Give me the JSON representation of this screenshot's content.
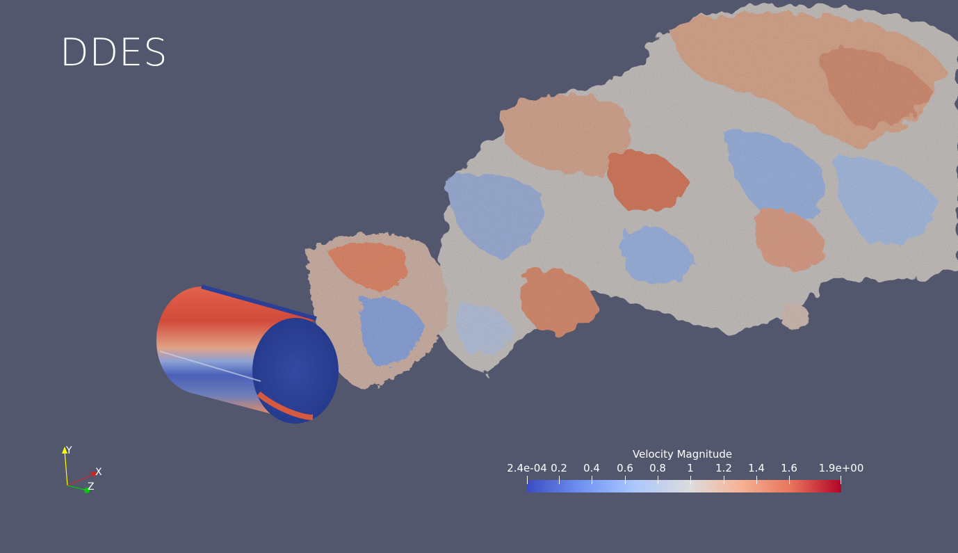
{
  "view": {
    "title": "DDES",
    "background_color": "#52576e"
  },
  "scalar_bar": {
    "title": "Velocity Magnitude",
    "ticks": [
      {
        "label": "2.4e-04",
        "value": 0.00024
      },
      {
        "label": "0.2",
        "value": 0.2
      },
      {
        "label": "0.4",
        "value": 0.4
      },
      {
        "label": "0.6",
        "value": 0.6
      },
      {
        "label": "0.8",
        "value": 0.8
      },
      {
        "label": "1",
        "value": 1.0
      },
      {
        "label": "1.2",
        "value": 1.2
      },
      {
        "label": "1.4",
        "value": 1.4
      },
      {
        "label": "1.6",
        "value": 1.6
      },
      {
        "label": "1.9e+00",
        "value": 1.9
      }
    ],
    "range": [
      0.00024,
      1.9
    ],
    "colormap": [
      "#3b4cc0",
      "#6f91f2",
      "#aac7fd",
      "#dddcdc",
      "#f6b394",
      "#e7745b",
      "#b40426"
    ]
  },
  "axes": {
    "x_label": "X",
    "y_label": "Y",
    "z_label": "Z",
    "x_color": "#d62020",
    "y_color": "#ffff00",
    "z_color": "#00cc00"
  }
}
